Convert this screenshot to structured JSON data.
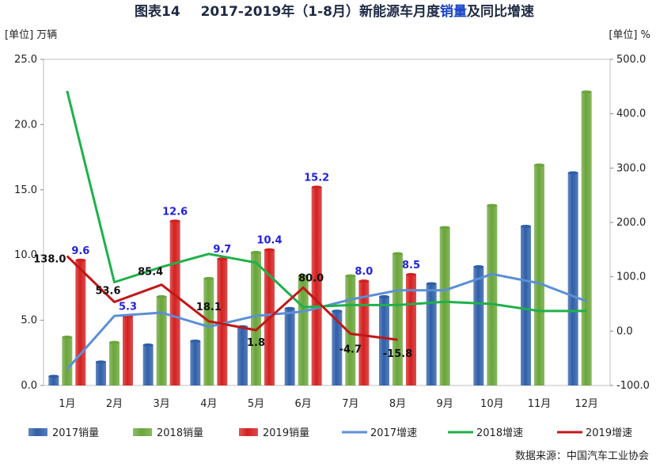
{
  "chart_data": {
    "type": "bar",
    "title_prefix": "图表14",
    "title_main": "2017-2019年（1-8月）新能源车月度",
    "title_highlight": "销量",
    "title_suffix": "及同比增速",
    "left_unit": "[单位] 万辆",
    "right_unit": "[单位] %",
    "source": "数据来源：中国汽车工业协会",
    "categories": [
      "1月",
      "2月",
      "3月",
      "4月",
      "5月",
      "6月",
      "7月",
      "8月",
      "9月",
      "10月",
      "11月",
      "12月"
    ],
    "y_left": {
      "min": 0,
      "max": 25,
      "step": 5,
      "tick_labels": [
        "0.0",
        "5.0",
        "10.0",
        "15.0",
        "20.0",
        "25.0"
      ]
    },
    "y_right": {
      "min": -100,
      "max": 500,
      "step": 100,
      "tick_labels": [
        "-100.0",
        "0.0",
        "100.0",
        "200.0",
        "300.0",
        "400.0",
        "500.0"
      ]
    },
    "bar_series": [
      {
        "name": "2017销量",
        "color": "#2f5fa8",
        "values": [
          0.7,
          1.8,
          3.1,
          3.4,
          4.5,
          5.9,
          5.7,
          6.8,
          7.8,
          9.1,
          12.2,
          16.3
        ]
      },
      {
        "name": "2018销量",
        "color": "#6aa53a",
        "values": [
          3.7,
          3.3,
          6.8,
          8.2,
          10.2,
          8.4,
          8.4,
          10.1,
          12.1,
          13.8,
          16.9,
          22.5
        ]
      },
      {
        "name": "2019销量",
        "color": "#d42020",
        "values": [
          9.6,
          5.3,
          12.6,
          9.7,
          10.4,
          15.2,
          8.0,
          8.5,
          null,
          null,
          null,
          null
        ]
      }
    ],
    "line_series": [
      {
        "name": "2017增速",
        "color": "#5b8fd6",
        "axis": "right",
        "values": [
          -70,
          28,
          34,
          8,
          28,
          36,
          58,
          75,
          75,
          105,
          88,
          55
        ]
      },
      {
        "name": "2018增速",
        "color": "#1fb04a",
        "axis": "right",
        "values": [
          442,
          90,
          118,
          142,
          126,
          44,
          48,
          48,
          54,
          50,
          37,
          37
        ]
      },
      {
        "name": "2019增速",
        "color": "#c01818",
        "axis": "right",
        "values": [
          138.0,
          53.6,
          85.4,
          18.1,
          1.8,
          80.0,
          -4.7,
          -15.8,
          null,
          null,
          null,
          null
        ]
      }
    ],
    "bar_labels_2019": [
      "9.6",
      "5.3",
      "12.6",
      "9.7",
      "10.4",
      "15.2",
      "8.0",
      "8.5"
    ],
    "growth_labels_2019": [
      "138.0",
      "53.6",
      "85.4",
      "18.1",
      "1.8",
      "80.0",
      "-4.7",
      "-15.8"
    ],
    "legend_position": "bottom",
    "grid": false
  }
}
